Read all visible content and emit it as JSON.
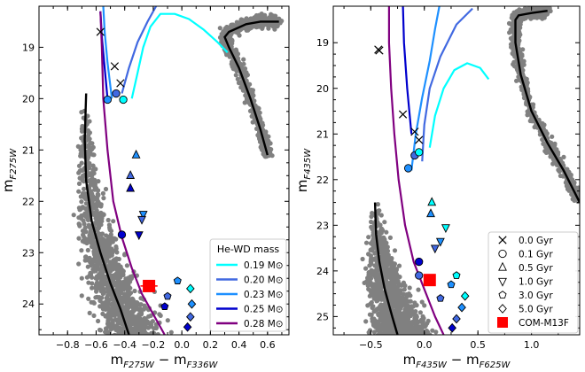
{
  "chart_data": [
    {
      "panel": "left",
      "type": "scatter",
      "xlabel": {
        "main": "m",
        "sub1": "F275W",
        "mid": " − m",
        "sub2": "F336W"
      },
      "ylabel": {
        "main": "m",
        "sub": "F275W"
      },
      "xlim": [
        -1.0,
        0.75
      ],
      "ylim": [
        24.6,
        18.2
      ],
      "xticks": [
        -0.8,
        -0.6,
        -0.4,
        -0.2,
        0.0,
        0.2,
        0.4,
        0.6
      ],
      "xticklabels": [
        "−0.8",
        "−0.6",
        "−0.4",
        "−0.2",
        "0.0",
        "0.2",
        "0.4",
        "0.6"
      ],
      "yticks": [
        19,
        20,
        21,
        22,
        23,
        24
      ],
      "yticklabels": [
        "19",
        "20",
        "21",
        "22",
        "23",
        "24"
      ],
      "legend": {
        "title": "He-WD mass",
        "position": "lower-right",
        "entries": [
          {
            "label": "0.19 M⊙",
            "color": "#00ffff"
          },
          {
            "label": "0.20 M⊙",
            "color": "#4169e1"
          },
          {
            "label": "0.23 M⊙",
            "color": "#1e90ff"
          },
          {
            "label": "0.25 M⊙",
            "color": "#0000cd"
          },
          {
            "label": "0.28 M⊙",
            "color": "#800080"
          }
        ]
      },
      "tracks": [
        {
          "name": "0.19 Msun",
          "color": "#00ffff",
          "points": [
            [
              -0.35,
              20.0
            ],
            [
              -0.31,
              19.5
            ],
            [
              -0.27,
              19.0
            ],
            [
              -0.22,
              18.6
            ],
            [
              -0.15,
              18.35
            ],
            [
              -0.05,
              18.35
            ],
            [
              0.05,
              18.45
            ],
            [
              0.15,
              18.65
            ],
            [
              0.25,
              18.9
            ],
            [
              0.32,
              19.1
            ]
          ]
        },
        {
          "name": "0.20 Msun",
          "color": "#4169e1",
          "points": [
            [
              -0.42,
              19.9
            ],
            [
              -0.37,
              19.4
            ],
            [
              -0.31,
              18.9
            ],
            [
              -0.24,
              18.5
            ],
            [
              -0.18,
              18.2
            ]
          ]
        },
        {
          "name": "0.23 Msun",
          "color": "#1e90ff",
          "points": [
            [
              -0.49,
              20.0
            ],
            [
              -0.52,
              19.3
            ],
            [
              -0.54,
              18.7
            ],
            [
              -0.55,
              18.2
            ]
          ]
        },
        {
          "name": "0.25 Msun",
          "color": "#0000cd",
          "points": [
            [
              -0.57,
              18.3
            ],
            [
              -0.56,
              18.8
            ],
            [
              -0.54,
              19.4
            ],
            [
              -0.52,
              20.0
            ]
          ]
        },
        {
          "name": "0.28 Msun",
          "color": "#800080",
          "points": [
            [
              -0.57,
              18.3
            ],
            [
              -0.56,
              19.0
            ],
            [
              -0.55,
              20.0
            ],
            [
              -0.52,
              21.0
            ],
            [
              -0.48,
              22.0
            ],
            [
              -0.42,
              22.7
            ],
            [
              -0.35,
              23.3
            ],
            [
              -0.28,
              23.8
            ],
            [
              -0.2,
              24.2
            ],
            [
              -0.12,
              24.6
            ]
          ]
        }
      ],
      "markers": [
        {
          "age": "0.0 Gyr",
          "shape": "x",
          "x": -0.57,
          "y": 18.7
        },
        {
          "age": "0.0 Gyr",
          "shape": "x",
          "x": -0.47,
          "y": 19.37
        },
        {
          "age": "0.0 Gyr",
          "shape": "x",
          "x": -0.43,
          "y": 19.7
        },
        {
          "age": "0.1 Gyr",
          "shape": "o",
          "x": -0.52,
          "y": 20.02,
          "color": "#1e90ff"
        },
        {
          "age": "0.1 Gyr",
          "shape": "o",
          "x": -0.46,
          "y": 19.9,
          "color": "#4169e1"
        },
        {
          "age": "0.1 Gyr",
          "shape": "o",
          "x": -0.41,
          "y": 20.02,
          "color": "#00ffff"
        },
        {
          "age": "0.5 Gyr",
          "shape": "^",
          "x": -0.32,
          "y": 21.1,
          "color": "#1e90ff"
        },
        {
          "age": "0.5 Gyr",
          "shape": "^",
          "x": -0.36,
          "y": 21.5,
          "color": "#4169e1"
        },
        {
          "age": "0.5 Gyr",
          "shape": "^",
          "x": -0.36,
          "y": 21.75,
          "color": "#0000cd"
        },
        {
          "age": "1.0 Gyr",
          "shape": "v",
          "x": -0.27,
          "y": 22.25,
          "color": "#1e90ff"
        },
        {
          "age": "1.0 Gyr",
          "shape": "v",
          "x": -0.28,
          "y": 22.35,
          "color": "#4169e1"
        },
        {
          "age": "1.0 Gyr",
          "shape": "v",
          "x": -0.3,
          "y": 22.65,
          "color": "#0000cd"
        },
        {
          "age": "0.1 Gyr",
          "shape": "o",
          "x": -0.42,
          "y": 22.65,
          "color": "#0000cd"
        },
        {
          "age": "3.0 Gyr",
          "shape": "p",
          "x": -0.03,
          "y": 23.55,
          "color": "#1e90ff"
        },
        {
          "age": "3.0 Gyr",
          "shape": "p",
          "x": -0.1,
          "y": 23.85,
          "color": "#4169e1"
        },
        {
          "age": "3.0 Gyr",
          "shape": "p",
          "x": -0.12,
          "y": 24.05,
          "color": "#0000cd"
        },
        {
          "age": "5.0 Gyr",
          "shape": "D",
          "x": 0.06,
          "y": 23.7,
          "color": "#00ffff"
        },
        {
          "age": "5.0 Gyr",
          "shape": "D",
          "x": 0.07,
          "y": 24.0,
          "color": "#1e90ff"
        },
        {
          "age": "5.0 Gyr",
          "shape": "D",
          "x": 0.06,
          "y": 24.25,
          "color": "#4169e1"
        },
        {
          "age": "5.0 Gyr",
          "shape": "D",
          "x": 0.04,
          "y": 24.45,
          "color": "#0000cd"
        }
      ],
      "com_m13f": {
        "x": -0.23,
        "y": 23.65,
        "xerr": 0.06,
        "yerr": 0.06
      },
      "msline": {
        "color": "#000000",
        "points": [
          [
            -0.67,
            19.9
          ],
          [
            -0.68,
            20.8
          ],
          [
            -0.67,
            21.6
          ],
          [
            -0.63,
            22.4
          ],
          [
            -0.57,
            23.0
          ],
          [
            -0.5,
            23.6
          ],
          [
            -0.43,
            24.1
          ],
          [
            -0.37,
            24.6
          ]
        ]
      },
      "rgbline": {
        "color": "#000000",
        "points": [
          [
            0.6,
            21.1
          ],
          [
            0.55,
            20.6
          ],
          [
            0.48,
            20.0
          ],
          [
            0.4,
            19.4
          ],
          [
            0.33,
            19.0
          ],
          [
            0.3,
            18.8
          ],
          [
            0.33,
            18.7
          ],
          [
            0.45,
            18.55
          ],
          [
            0.55,
            18.5
          ],
          [
            0.68,
            18.5
          ]
        ]
      }
    },
    {
      "panel": "right",
      "type": "scatter",
      "xlabel": {
        "main": "m",
        "sub1": "F435W",
        "mid": " − m",
        "sub2": "F625W"
      },
      "ylabel": {
        "main": "m",
        "sub": "F435W"
      },
      "xlim": [
        -0.85,
        1.45
      ],
      "ylim": [
        25.4,
        18.2
      ],
      "xticks": [
        -0.5,
        0.0,
        0.5,
        1.0
      ],
      "xticklabels": [
        "−0.5",
        "0.0",
        "0.5",
        "1.0"
      ],
      "yticks": [
        19,
        20,
        21,
        22,
        23,
        24,
        25
      ],
      "yticklabels": [
        "19",
        "20",
        "21",
        "22",
        "23",
        "24",
        "25"
      ],
      "legend": {
        "position": "lower-right",
        "entries": [
          {
            "label": "0.0 Gyr",
            "shape": "x"
          },
          {
            "label": "0.1 Gyr",
            "shape": "o"
          },
          {
            "label": "0.5 Gyr",
            "shape": "^"
          },
          {
            "label": "1.0 Gyr",
            "shape": "v"
          },
          {
            "label": "3.0 Gyr",
            "shape": "p"
          },
          {
            "label": "5.0 Gyr",
            "shape": "D"
          },
          {
            "label": "COM-M13F",
            "shape": "s",
            "color": "#ff0000"
          }
        ]
      },
      "tracks": [
        {
          "name": "0.19 Msun",
          "color": "#00ffff",
          "points": [
            [
              0.05,
              21.3
            ],
            [
              0.1,
              20.6
            ],
            [
              0.18,
              20.0
            ],
            [
              0.28,
              19.6
            ],
            [
              0.4,
              19.45
            ],
            [
              0.52,
              19.55
            ],
            [
              0.6,
              19.8
            ]
          ]
        },
        {
          "name": "0.20 Msun",
          "color": "#4169e1",
          "points": [
            [
              -0.02,
              21.6
            ],
            [
              0.0,
              20.8
            ],
            [
              0.05,
              20.0
            ],
            [
              0.15,
              19.3
            ],
            [
              0.3,
              18.6
            ],
            [
              0.45,
              18.25
            ]
          ]
        },
        {
          "name": "0.23 Msun",
          "color": "#1e90ff",
          "points": [
            [
              -0.12,
              21.8
            ],
            [
              -0.08,
              21.0
            ],
            [
              -0.02,
              20.2
            ],
            [
              0.05,
              19.4
            ],
            [
              0.1,
              18.7
            ],
            [
              0.14,
              18.2
            ]
          ]
        },
        {
          "name": "0.25 Msun",
          "color": "#0000cd",
          "points": [
            [
              -0.2,
              18.2
            ],
            [
              -0.19,
              19.0
            ],
            [
              -0.16,
              20.0
            ],
            [
              -0.12,
              21.0
            ]
          ]
        },
        {
          "name": "0.28 Msun",
          "color": "#800080",
          "points": [
            [
              -0.33,
              18.2
            ],
            [
              -0.33,
              19.0
            ],
            [
              -0.31,
              20.0
            ],
            [
              -0.28,
              21.0
            ],
            [
              -0.24,
              22.0
            ],
            [
              -0.18,
              23.0
            ],
            [
              -0.1,
              23.8
            ],
            [
              0.0,
              24.4
            ],
            [
              0.1,
              25.0
            ],
            [
              0.18,
              25.4
            ]
          ]
        }
      ],
      "markers": [
        {
          "age": "0.0 Gyr",
          "shape": "x",
          "x": -0.43,
          "y": 19.15
        },
        {
          "age": "0.0 Gyr",
          "shape": "x",
          "x": -0.42,
          "y": 19.17
        },
        {
          "age": "0.0 Gyr",
          "shape": "x",
          "x": -0.2,
          "y": 20.57
        },
        {
          "age": "0.0 Gyr",
          "shape": "x",
          "x": -0.09,
          "y": 20.95
        },
        {
          "age": "0.0 Gyr",
          "shape": "x",
          "x": -0.05,
          "y": 21.13
        },
        {
          "age": "0.1 Gyr",
          "shape": "o",
          "x": -0.15,
          "y": 21.75,
          "color": "#1e90ff"
        },
        {
          "age": "0.1 Gyr",
          "shape": "o",
          "x": -0.09,
          "y": 21.47,
          "color": "#4169e1"
        },
        {
          "age": "0.1 Gyr",
          "shape": "o",
          "x": -0.05,
          "y": 21.4,
          "color": "#00ffff"
        },
        {
          "age": "0.5 Gyr",
          "shape": "^",
          "x": 0.07,
          "y": 22.5,
          "color": "#00ffff"
        },
        {
          "age": "0.5 Gyr",
          "shape": "^",
          "x": 0.06,
          "y": 22.75,
          "color": "#1e90ff"
        },
        {
          "age": "1.0 Gyr",
          "shape": "v",
          "x": 0.2,
          "y": 23.05,
          "color": "#00ffff"
        },
        {
          "age": "1.0 Gyr",
          "shape": "v",
          "x": 0.15,
          "y": 23.35,
          "color": "#1e90ff"
        },
        {
          "age": "1.0 Gyr",
          "shape": "v",
          "x": 0.1,
          "y": 23.5,
          "color": "#4169e1"
        },
        {
          "age": "0.1 Gyr",
          "shape": "o",
          "x": -0.05,
          "y": 23.8,
          "color": "#0000cd"
        },
        {
          "age": "0.1 Gyr",
          "shape": "o",
          "x": -0.05,
          "y": 24.1,
          "color": "#4169e1"
        },
        {
          "age": "3.0 Gyr",
          "shape": "p",
          "x": 0.3,
          "y": 24.1,
          "color": "#00ffff"
        },
        {
          "age": "3.0 Gyr",
          "shape": "p",
          "x": 0.25,
          "y": 24.3,
          "color": "#1e90ff"
        },
        {
          "age": "3.0 Gyr",
          "shape": "p",
          "x": 0.15,
          "y": 24.6,
          "color": "#4169e1"
        },
        {
          "age": "5.0 Gyr",
          "shape": "D",
          "x": 0.38,
          "y": 24.55,
          "color": "#00ffff"
        },
        {
          "age": "5.0 Gyr",
          "shape": "D",
          "x": 0.35,
          "y": 24.8,
          "color": "#1e90ff"
        },
        {
          "age": "5.0 Gyr",
          "shape": "D",
          "x": 0.3,
          "y": 25.05,
          "color": "#4169e1"
        },
        {
          "age": "5.0 Gyr",
          "shape": "D",
          "x": 0.26,
          "y": 25.25,
          "color": "#0000cd"
        }
      ],
      "com_m13f": {
        "x": 0.05,
        "y": 24.2,
        "xerr": 0.04,
        "yerr": 0.04
      },
      "msline": {
        "color": "#000000",
        "points": [
          [
            -0.46,
            22.5
          ],
          [
            -0.45,
            23.2
          ],
          [
            -0.42,
            23.8
          ],
          [
            -0.37,
            24.4
          ],
          [
            -0.3,
            25.0
          ],
          [
            -0.25,
            25.4
          ]
        ]
      },
      "rgbline": {
        "color": "#000000",
        "points": [
          [
            1.45,
            22.5
          ],
          [
            1.3,
            21.8
          ],
          [
            1.15,
            21.2
          ],
          [
            1.0,
            20.5
          ],
          [
            0.9,
            19.7
          ],
          [
            0.85,
            19.0
          ],
          [
            0.85,
            18.5
          ],
          [
            0.88,
            18.4
          ],
          [
            1.0,
            18.35
          ],
          [
            1.15,
            18.3
          ]
        ]
      }
    }
  ]
}
